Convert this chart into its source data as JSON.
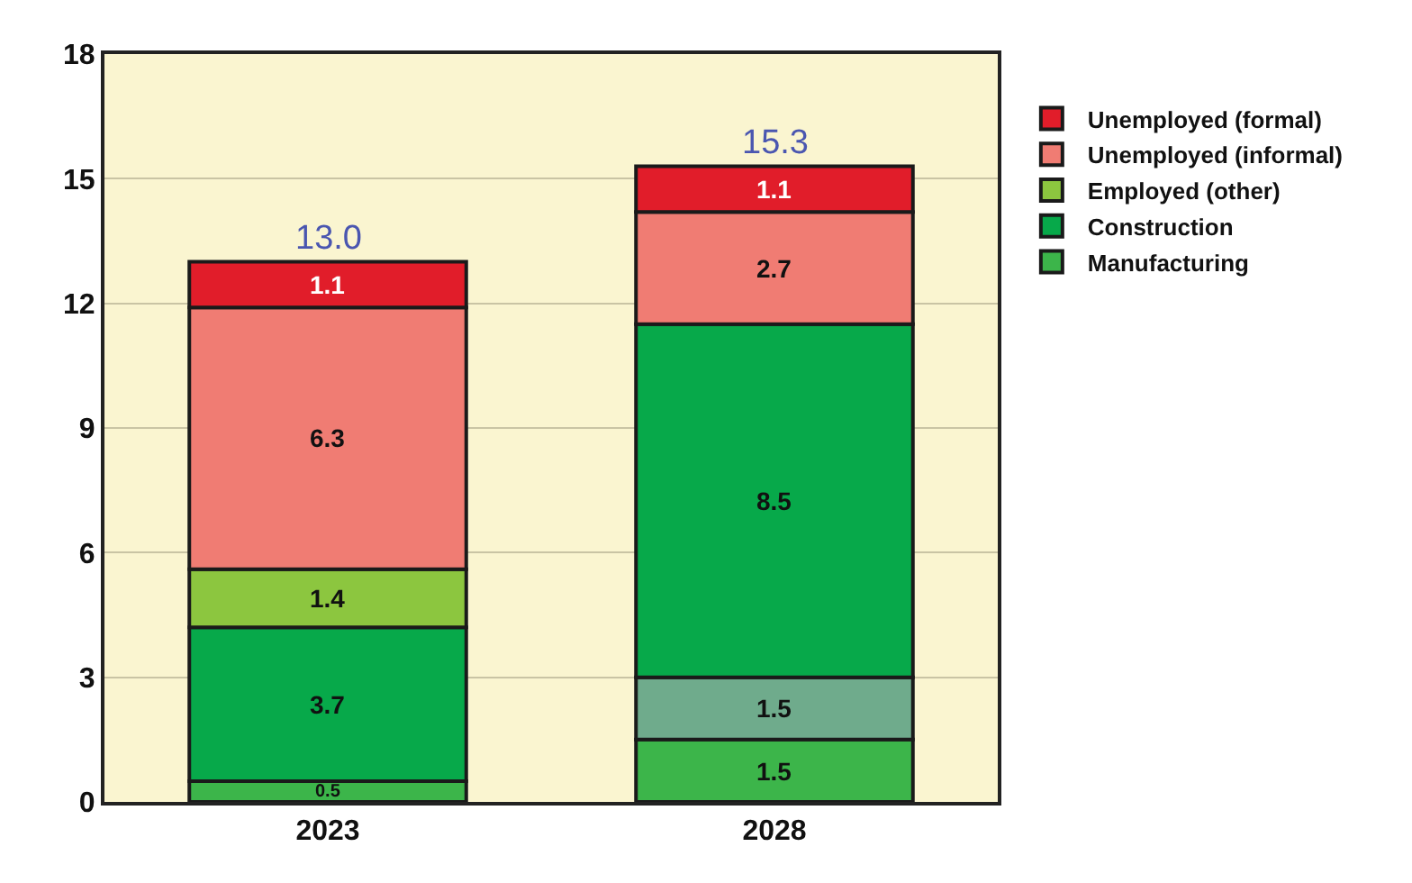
{
  "chart_data": {
    "type": "bar",
    "stacked": true,
    "categories": [
      "2023",
      "2028"
    ],
    "series": [
      {
        "name": "Manufacturing",
        "colors": [
          "#3cb54a",
          "#3cb54a"
        ],
        "values": [
          0.5,
          1.5
        ]
      },
      {
        "name": "Construction",
        "colors": [
          "#07a94a",
          "#6fab8c"
        ],
        "values": [
          3.7,
          1.5
        ]
      },
      {
        "name": "Employed (other)",
        "colors": [
          "#8cc63f",
          "#07a94a"
        ],
        "values": [
          1.4,
          8.5
        ]
      },
      {
        "name": "Unemployed (informal)",
        "colors": [
          "#f07c73",
          "#f07c73"
        ],
        "values": [
          6.3,
          2.7
        ]
      },
      {
        "name": "Unemployed (formal)",
        "colors": [
          "#e11d2a",
          "#e11d2a"
        ],
        "values": [
          1.1,
          1.1
        ]
      }
    ],
    "data_labels": true,
    "totals": [
      "13.0",
      "15.3"
    ],
    "ylim": [
      0,
      18
    ],
    "yticks": [
      0,
      3,
      6,
      9,
      12,
      15,
      18
    ],
    "grid": "y",
    "legend": "right"
  }
}
